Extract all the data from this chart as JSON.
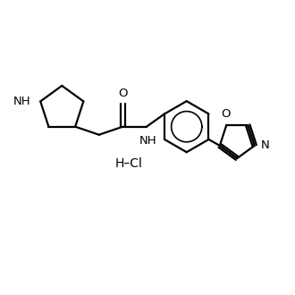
{
  "background_color": "#ffffff",
  "line_color": "#000000",
  "line_width": 1.6,
  "font_size": 9.5,
  "figsize": [
    3.3,
    3.3
  ],
  "dpi": 100,
  "xlim": [
    0,
    10
  ],
  "ylim": [
    0,
    10
  ]
}
